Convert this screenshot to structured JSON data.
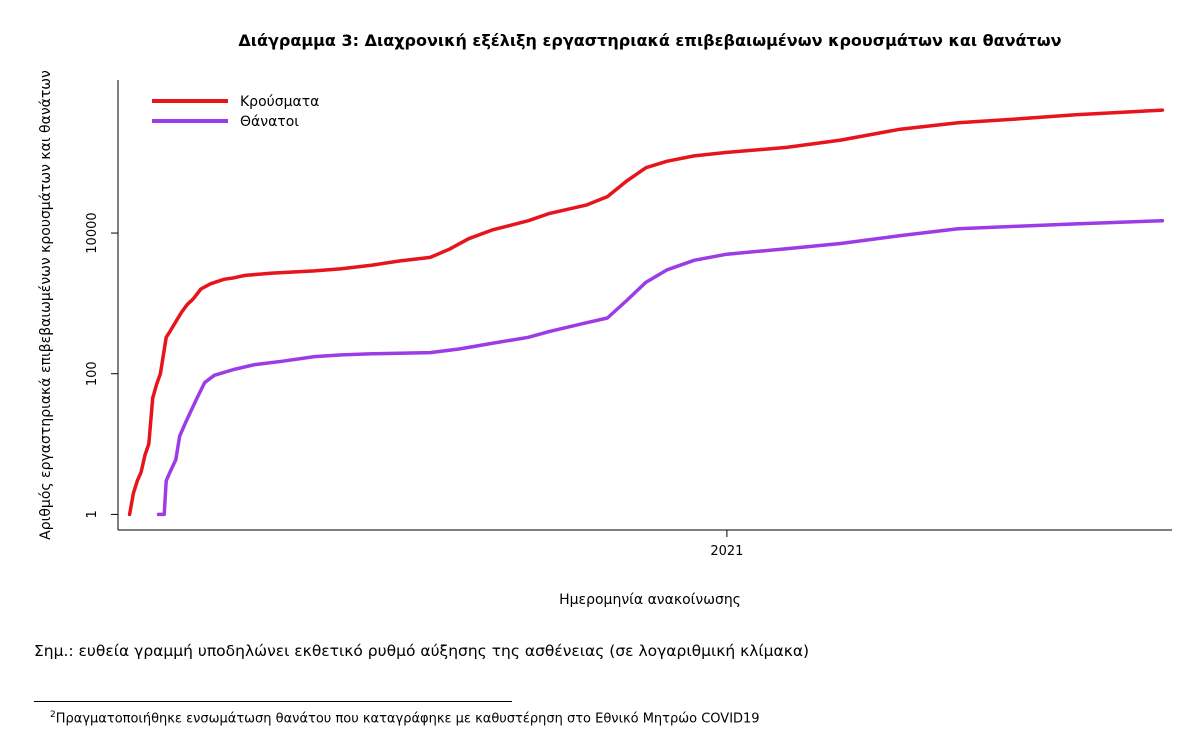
{
  "chart_data": {
    "type": "line",
    "title": "Διάγραμμα 3: Διαχρονική εξέλιξη εργαστηριακά επιβεβαιωμένων κρουσμάτων και θανάτων",
    "xlabel": "Ημερομηνία ανακοίνωσης",
    "ylabel": "Αριθμός εργαστηριακά επιβεβαιωμένων κρουσμάτων και θανάτων",
    "x_ticks": [
      "2021"
    ],
    "y_scale": "log",
    "y_ticks": [
      1,
      100,
      10000
    ],
    "y_tick_labels": [
      "1",
      "100",
      "10000"
    ],
    "xlim": [
      "2020-02-20",
      "2021-08-20"
    ],
    "ylim": [
      0.6,
      1500000
    ],
    "grid": false,
    "legend_position": "top-left",
    "series": [
      {
        "name": "Κρούσματα",
        "color": "#e8141b",
        "points": [
          [
            "2020-02-26",
            1
          ],
          [
            "2020-02-28",
            2
          ],
          [
            "2020-03-01",
            3
          ],
          [
            "2020-03-03",
            4
          ],
          [
            "2020-03-05",
            7
          ],
          [
            "2020-03-07",
            10
          ],
          [
            "2020-03-09",
            45
          ],
          [
            "2020-03-11",
            70
          ],
          [
            "2020-03-13",
            100
          ],
          [
            "2020-03-16",
            330
          ],
          [
            "2020-03-18",
            400
          ],
          [
            "2020-03-21",
            550
          ],
          [
            "2020-03-24",
            750
          ],
          [
            "2020-03-27",
            970
          ],
          [
            "2020-03-30",
            1150
          ],
          [
            "2020-04-03",
            1600
          ],
          [
            "2020-04-08",
            1900
          ],
          [
            "2020-04-15",
            2200
          ],
          [
            "2020-04-20",
            2300
          ],
          [
            "2020-04-23",
            2400
          ],
          [
            "2020-04-26",
            2500
          ],
          [
            "2020-05-10",
            2700
          ],
          [
            "2020-06-01",
            2900
          ],
          [
            "2020-06-15",
            3100
          ],
          [
            "2020-07-01",
            3500
          ],
          [
            "2020-07-15",
            4000
          ],
          [
            "2020-07-31",
            4500
          ],
          [
            "2020-08-10",
            5900
          ],
          [
            "2020-08-20",
            8300
          ],
          [
            "2020-09-01",
            11000
          ],
          [
            "2020-09-20",
            15000
          ],
          [
            "2020-10-01",
            19000
          ],
          [
            "2020-10-20",
            25000
          ],
          [
            "2020-10-31",
            33000
          ],
          [
            "2020-11-10",
            55000
          ],
          [
            "2020-11-20",
            85000
          ],
          [
            "2020-12-01",
            105000
          ],
          [
            "2020-12-15",
            125000
          ],
          [
            "2021-01-01",
            140000
          ],
          [
            "2021-02-01",
            165000
          ],
          [
            "2021-03-01",
            210000
          ],
          [
            "2021-04-01",
            300000
          ],
          [
            "2021-05-01",
            370000
          ],
          [
            "2021-06-01",
            420000
          ],
          [
            "2021-07-01",
            480000
          ],
          [
            "2021-08-15",
            560000
          ]
        ]
      },
      {
        "name": "Θάνατοι",
        "color": "#9b3ce6",
        "points": [
          [
            "2020-03-12",
            1
          ],
          [
            "2020-03-15",
            1
          ],
          [
            "2020-03-16",
            3
          ],
          [
            "2020-03-18",
            4
          ],
          [
            "2020-03-21",
            6
          ],
          [
            "2020-03-23",
            13
          ],
          [
            "2020-03-26",
            20
          ],
          [
            "2020-03-29",
            30
          ],
          [
            "2020-04-01",
            45
          ],
          [
            "2020-04-05",
            75
          ],
          [
            "2020-04-10",
            95
          ],
          [
            "2020-04-20",
            115
          ],
          [
            "2020-05-01",
            135
          ],
          [
            "2020-05-15",
            150
          ],
          [
            "2020-06-01",
            175
          ],
          [
            "2020-06-15",
            185
          ],
          [
            "2020-07-01",
            192
          ],
          [
            "2020-07-31",
            200
          ],
          [
            "2020-08-15",
            225
          ],
          [
            "2020-09-01",
            270
          ],
          [
            "2020-09-20",
            330
          ],
          [
            "2020-10-01",
            400
          ],
          [
            "2020-10-20",
            530
          ],
          [
            "2020-10-31",
            620
          ],
          [
            "2020-11-10",
            1100
          ],
          [
            "2020-11-20",
            2000
          ],
          [
            "2020-12-01",
            3000
          ],
          [
            "2020-12-15",
            4100
          ],
          [
            "2021-01-01",
            5000
          ],
          [
            "2021-02-01",
            6000
          ],
          [
            "2021-03-01",
            7100
          ],
          [
            "2021-04-01",
            9200
          ],
          [
            "2021-05-01",
            11500
          ],
          [
            "2021-06-01",
            12500
          ],
          [
            "2021-07-01",
            13500
          ],
          [
            "2021-08-15",
            15000
          ]
        ]
      }
    ]
  },
  "note": "Σημ.: ευθεία γραμμή υποδηλώνει εκθετικό ρυθμό αύξησης της ασθένειας (σε λογαριθμική κλίμακα)",
  "footnote": {
    "marker": "2",
    "text": "Πραγματοποιήθηκε ενσωμάτωση θανάτου που καταγράφηκε με καθυστέρηση στο Εθνικό Μητρώο COVID19"
  }
}
